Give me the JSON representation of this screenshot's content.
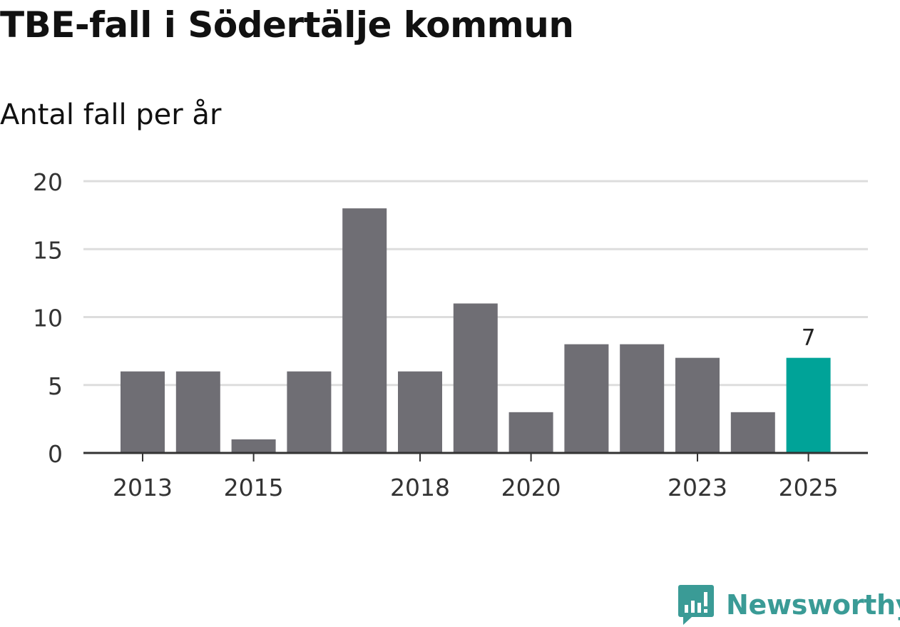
{
  "chart_data": {
    "type": "bar",
    "title": "TBE-fall i Södertälje kommun",
    "subtitle": "Antal fall per år",
    "categories": [
      "2013",
      "2014",
      "2015",
      "2016",
      "2017",
      "2018",
      "2019",
      "2020",
      "2021",
      "2022",
      "2023",
      "2024",
      "2025"
    ],
    "values": [
      6,
      6,
      1,
      6,
      18,
      6,
      11,
      3,
      8,
      8,
      7,
      3,
      7
    ],
    "x_tick_labels": [
      "2013",
      "2015",
      "2018",
      "2020",
      "2023",
      "2025"
    ],
    "y_ticks": [
      "0",
      "5",
      "10",
      "15",
      "20"
    ],
    "ylim": [
      0,
      20
    ],
    "highlight_category": "2025",
    "highlight_label": "7",
    "xlabel": "",
    "ylabel": "",
    "grid": true
  },
  "colors": {
    "bar": "#6f6e74",
    "highlight": "#00a398",
    "grid": "#dddddd",
    "axis": "#333333",
    "brand": "#3a9b96"
  },
  "logo": {
    "text": "Newsworthy"
  }
}
